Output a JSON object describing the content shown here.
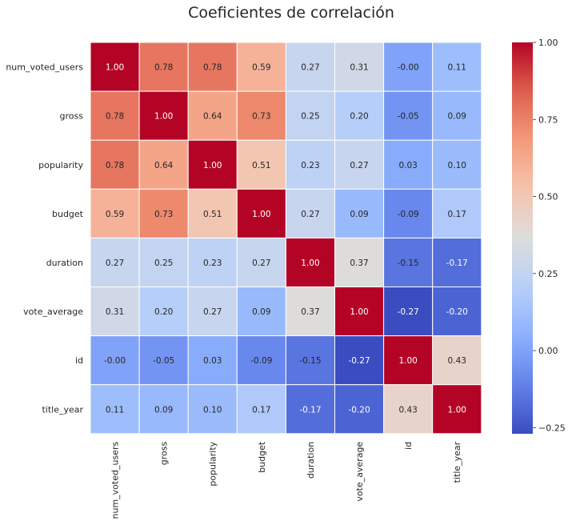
{
  "chart_data": {
    "type": "heatmap",
    "title": "Coeficientes de correlación",
    "row_labels": [
      "num_voted_users",
      "gross",
      "popularity",
      "budget",
      "duration",
      "vote_average",
      "id",
      "title_year"
    ],
    "col_labels": [
      "num_voted_users",
      "gross",
      "popularity",
      "budget",
      "duration",
      "vote_average",
      "id",
      "title_year"
    ],
    "values": [
      [
        1.0,
        0.78,
        0.78,
        0.59,
        0.27,
        0.31,
        -0.0,
        0.11
      ],
      [
        0.78,
        1.0,
        0.64,
        0.73,
        0.25,
        0.2,
        -0.05,
        0.09
      ],
      [
        0.78,
        0.64,
        1.0,
        0.51,
        0.23,
        0.27,
        0.03,
        0.1
      ],
      [
        0.59,
        0.73,
        0.51,
        1.0,
        0.27,
        0.09,
        -0.09,
        0.17
      ],
      [
        0.27,
        0.25,
        0.23,
        0.27,
        1.0,
        0.37,
        -0.15,
        -0.17
      ],
      [
        0.31,
        0.2,
        0.27,
        0.09,
        0.37,
        1.0,
        -0.27,
        -0.2
      ],
      [
        -0.0,
        -0.05,
        0.03,
        -0.09,
        -0.15,
        -0.27,
        1.0,
        0.43
      ],
      [
        0.11,
        0.09,
        0.1,
        0.17,
        -0.17,
        -0.2,
        0.43,
        1.0
      ]
    ],
    "value_format": "0.00",
    "colormap": "coolwarm",
    "vmin": -0.27,
    "vmax": 1.0,
    "colorbar": {
      "ticks": [
        -0.25,
        0.0,
        0.25,
        0.5,
        0.75,
        1.0
      ],
      "tick_labels": [
        "−0.25",
        "0.00",
        "0.25",
        "0.50",
        "0.75",
        "1.00"
      ]
    },
    "cell_border_color": "#ffffff"
  }
}
